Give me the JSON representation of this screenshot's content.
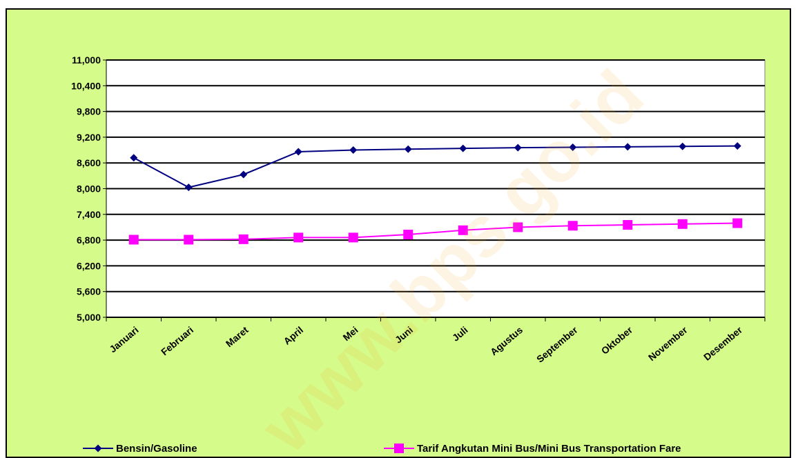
{
  "watermark": "www.bps.go.id",
  "chart_data": {
    "type": "line",
    "categories": [
      "Januari",
      "Februari",
      "Maret",
      "April",
      "Mei",
      "Juni",
      "Juli",
      "Agustus",
      "September",
      "Oktober",
      "November",
      "Desember"
    ],
    "ylim": [
      5000,
      11000
    ],
    "yticks": [
      "5,000",
      "5,600",
      "6,200",
      "6,800",
      "7,400",
      "8,000",
      "8,600",
      "9,200",
      "9,800",
      "10,400",
      "11,000"
    ],
    "grid": true,
    "legend_position": "bottom",
    "series": [
      {
        "name": "Bensin/Gasoline",
        "color": "#000080",
        "marker": "diamond",
        "values": [
          8720,
          8030,
          8330,
          8860,
          8900,
          8920,
          8940,
          8955,
          8965,
          8975,
          8985,
          8995
        ]
      },
      {
        "name": "Tarif Angkutan Mini Bus/Mini Bus Transportation Fare",
        "color": "#ff00ff",
        "marker": "square",
        "values": [
          6810,
          6810,
          6820,
          6860,
          6860,
          6930,
          7030,
          7100,
          7135,
          7155,
          7175,
          7195
        ]
      }
    ]
  }
}
